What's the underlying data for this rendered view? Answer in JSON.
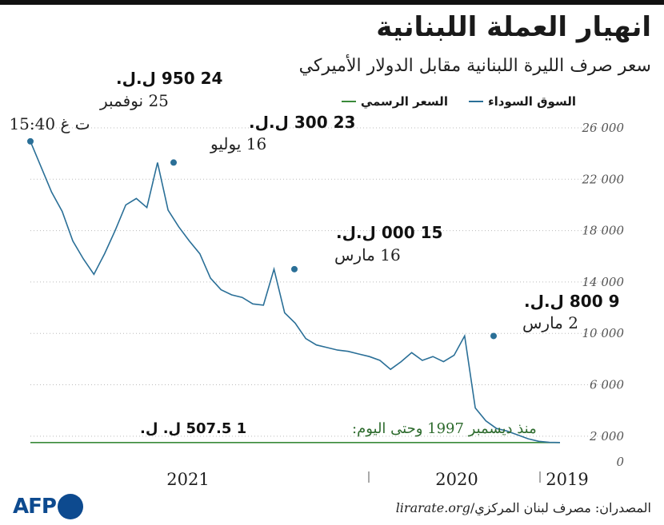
{
  "header": {
    "title": "انهيار العملة اللبنانية",
    "subtitle": "سعر صرف الليرة اللبنانية مقابل الدولار الأميركي"
  },
  "legend": {
    "official": "السعر الرسمي",
    "black": "السوق السوداء"
  },
  "colors": {
    "black_market": "#2a6f97",
    "official": "#3a8a3a"
  },
  "chart_data": {
    "type": "line",
    "x_order": "reversed (latest on the left)",
    "ylim": [
      0,
      26000
    ],
    "yticks": [
      "0",
      "2 000",
      "6 000",
      "10 000",
      "14 000",
      "18 000",
      "22 000",
      "26 000"
    ],
    "ytick_values": [
      0,
      2000,
      6000,
      10000,
      14000,
      18000,
      22000,
      26000
    ],
    "xlabels": [
      "2021",
      "2020",
      "2019"
    ],
    "grid": true,
    "legend_position": "top-right",
    "series": [
      {
        "name": "السوق السوداء",
        "x": [
          0,
          0.02,
          0.04,
          0.06,
          0.08,
          0.1,
          0.12,
          0.14,
          0.16,
          0.18,
          0.2,
          0.22,
          0.24,
          0.26,
          0.28,
          0.3,
          0.32,
          0.34,
          0.36,
          0.38,
          0.4,
          0.42,
          0.44,
          0.46,
          0.48,
          0.5,
          0.52,
          0.54,
          0.56,
          0.58,
          0.6,
          0.62,
          0.64,
          0.66,
          0.68,
          0.7,
          0.72,
          0.74,
          0.76,
          0.78,
          0.8,
          0.82,
          0.84,
          0.86,
          0.88,
          0.9,
          0.92,
          0.94,
          0.96,
          1.0
        ],
        "values": [
          1507.5,
          1520,
          1600,
          1800,
          2100,
          2400,
          2600,
          3200,
          4200,
          9800,
          8300,
          7800,
          8200,
          7900,
          8500,
          7800,
          7200,
          7900,
          8200,
          8400,
          8600,
          8700,
          8900,
          9100,
          9600,
          10800,
          11600,
          15000,
          12200,
          12300,
          12800,
          13000,
          13400,
          14300,
          16200,
          17200,
          18300,
          19600,
          23300,
          19800,
          20500,
          20000,
          18000,
          16200,
          14600,
          15800,
          17200,
          19500,
          21000,
          24950
        ]
      },
      {
        "name": "السعر الرسمي",
        "values": [
          1507.5,
          1507.5
        ]
      }
    ],
    "annotations": [
      {
        "value": "24 950 ل.ل.",
        "date": "25 نوفمبر",
        "time": "15:40 ت غ",
        "at_value": 24950
      },
      {
        "value": "23 300 ل.ل.",
        "date": "16 يوليو",
        "at_value": 23300
      },
      {
        "value": "15 000 ل.ل.",
        "date": "16 مارس",
        "at_value": 15000
      },
      {
        "value": "9 800 ل.ل.",
        "date": "2 مارس",
        "at_value": 9800
      }
    ],
    "official_note": "منذ ديسمبر 1997 وحتى اليوم:",
    "official_value": "1 507.5 ل. ل."
  },
  "footer": {
    "source_label": "المصدران: مصرف لبنان المركزي/",
    "source_site": "lirarate.org",
    "logo": "AFP"
  }
}
